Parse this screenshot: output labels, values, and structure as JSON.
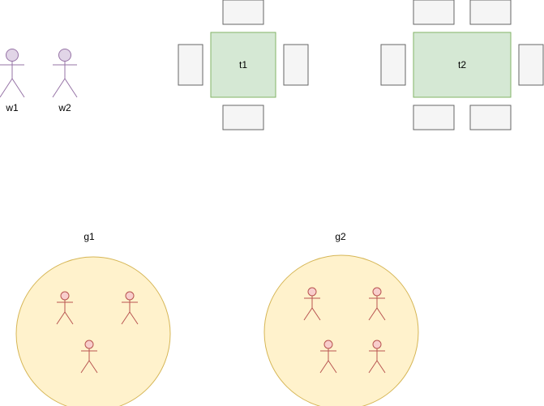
{
  "waiters": [
    {
      "label": "w1"
    },
    {
      "label": "w2"
    }
  ],
  "tables": [
    {
      "label": "t1",
      "chairs": 4
    },
    {
      "label": "t2",
      "chairs": 6
    }
  ],
  "groups": [
    {
      "label": "g1",
      "members": 3
    },
    {
      "label": "g2",
      "members": 4
    }
  ],
  "colors": {
    "waiter_fill": "#e1d5e7",
    "waiter_stroke": "#9673a6",
    "table_fill": "#d5e8d4",
    "table_stroke": "#82b366",
    "chair_fill": "#f5f5f5",
    "chair_stroke": "#666666",
    "group_fill": "#fff2cc",
    "group_stroke": "#d6b656",
    "guest_fill": "#f8cecc",
    "guest_stroke": "#b85450"
  }
}
